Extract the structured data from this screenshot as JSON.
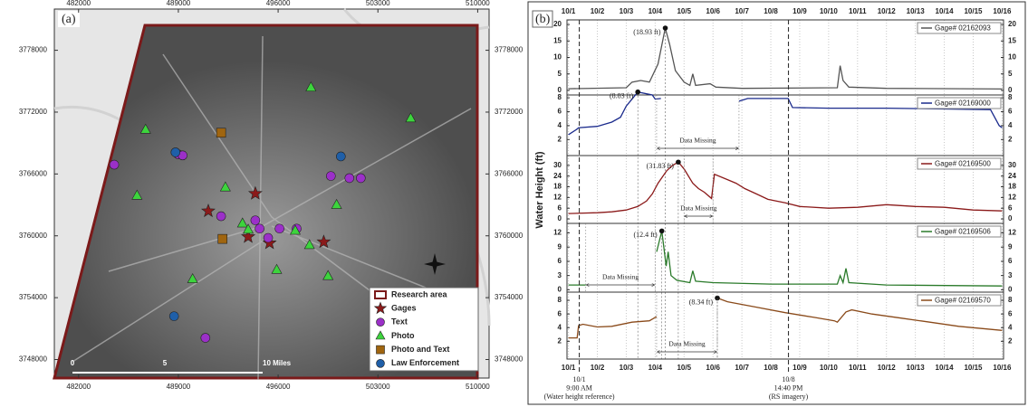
{
  "chart_data": [
    {
      "type": "scatter",
      "panel_label": "(a)",
      "xlim": [
        480300,
        510800
      ],
      "ylim": [
        3746200,
        3782000
      ],
      "xticks": [
        482000,
        489000,
        496000,
        503000,
        510000
      ],
      "yticks": [
        3748000,
        3754000,
        3760000,
        3766000,
        3772000,
        3778000
      ],
      "legend": "lower right",
      "area_label": "Research area",
      "scale_labels": [
        "0",
        "5",
        "10 Miles"
      ],
      "series": [
        {
          "name": "Gages",
          "color": "#8b1a1a",
          "marker": "star",
          "x": [
            494400,
            491100,
            493900,
            495400,
            499200
          ],
          "values": [
            3764100,
            3762400,
            3759900,
            3759300,
            3759400
          ]
        },
        {
          "name": "Text",
          "color": "#9b30c8",
          "marker": "circle",
          "x": [
            484500,
            489000,
            489300,
            492000,
            494400,
            494700,
            495300,
            496100,
            497300,
            499700,
            501000,
            501800,
            490900
          ],
          "values": [
            3766900,
            3767900,
            3767800,
            3761900,
            3761500,
            3760700,
            3759800,
            3760700,
            3760700,
            3765800,
            3765600,
            3765600,
            3750100
          ]
        },
        {
          "name": "Photo",
          "color": "#3dd43d",
          "marker": "triangle",
          "x": [
            498300,
            505300,
            486700,
            486100,
            492300,
            500100,
            493500,
            493900,
            497200,
            498200,
            495900,
            490000,
            499500
          ],
          "values": [
            3774400,
            3771400,
            3770300,
            3763900,
            3764700,
            3763000,
            3761200,
            3760600,
            3760500,
            3759100,
            3756700,
            3755800,
            3756100
          ]
        },
        {
          "name": "Photo and Text",
          "color": "#a0650f",
          "marker": "square",
          "x": [
            492000,
            492100
          ],
          "values": [
            3770000,
            3759700
          ]
        },
        {
          "name": "Law Enforcement",
          "color": "#1f5fa8",
          "marker": "circle",
          "x": [
            488800,
            500400,
            488700
          ],
          "values": [
            3768100,
            3767700,
            3752200
          ]
        }
      ]
    },
    {
      "type": "line",
      "panel_label": "(b)",
      "ylabel": "Water Height (ft)",
      "grid": true,
      "xlim": [
        0.95,
        16.05
      ],
      "xticks": [
        {
          "value": 1,
          "label": "10/1"
        },
        {
          "value": 2,
          "label": "10/2"
        },
        {
          "value": 3,
          "label": "10/3"
        },
        {
          "value": 4,
          "label": "10/4"
        },
        {
          "value": 5,
          "label": "10/5"
        },
        {
          "value": 6,
          "label": "10/6"
        },
        {
          "value": 7,
          "label": "10/7"
        },
        {
          "value": 8,
          "label": "10/8"
        },
        {
          "value": 9,
          "label": "10/9"
        },
        {
          "value": 10,
          "label": "10/10"
        },
        {
          "value": 11,
          "label": "10/11"
        },
        {
          "value": 12,
          "label": "10/12"
        },
        {
          "value": 13,
          "label": "10/13"
        },
        {
          "value": 14,
          "label": "10/14"
        },
        {
          "value": 15,
          "label": "10/15"
        },
        {
          "value": 16,
          "label": "10/16"
        }
      ],
      "reference_lines": [
        {
          "x": 1.375,
          "labels": [
            "10/1",
            "9:00 AM",
            "(Water height reference)"
          ]
        },
        {
          "x": 8.61,
          "labels": [
            "10/8",
            "14:40 PM",
            "(RS imagery)"
          ]
        }
      ],
      "panels": [
        {
          "name": "Gage# 02162093",
          "color": "#555555",
          "ylim": [
            -1.4,
            21.4
          ],
          "yticks": [
            0,
            5,
            10,
            15,
            20
          ],
          "x": [
            1,
            3.0,
            3.2,
            3.5,
            3.8,
            4.1,
            4.35,
            4.5,
            4.7,
            5.0,
            5.2,
            5.3,
            5.4,
            5.9,
            6.1,
            7,
            10.3,
            10.4,
            10.5,
            10.7,
            12,
            16
          ],
          "values": [
            0.5,
            0.8,
            2.5,
            3,
            2.5,
            8,
            18.93,
            14,
            6,
            2.5,
            1.5,
            5,
            1.5,
            2,
            1,
            0.6,
            0.8,
            7.5,
            3,
            1,
            0.6,
            0.4
          ],
          "peak": {
            "x": 4.35,
            "value": 18.93,
            "label": "(18.93 ft)"
          }
        },
        {
          "name": "Gage# 02169000",
          "color": "#1a2a8c",
          "ylim": [
            -0.3,
            8.4
          ],
          "yticks": [
            2,
            4,
            6,
            8
          ],
          "x": [
            1,
            1.3,
            1.35,
            2,
            2.5,
            2.8,
            3.0,
            3.2,
            3.4,
            3.9,
            4.0,
            4.2,
            4.5,
            6.9,
            7.2,
            8.6,
            8.75,
            10,
            12,
            15.6,
            15.9,
            16
          ],
          "values": [
            2.7,
            3.5,
            3.7,
            3.9,
            4.5,
            5.2,
            6.8,
            7.8,
            8.83,
            8.4,
            7.8,
            7.9,
            null,
            7.5,
            7.9,
            7.9,
            6.6,
            6.5,
            6.5,
            6.3,
            4.0,
            3.7
          ],
          "peak": {
            "x": 3.4,
            "value": 8.83,
            "label": "(8.83 ft)"
          },
          "missing": {
            "text": "Data Missing",
            "span": [
              4.05,
              6.9
            ]
          }
        },
        {
          "name": "Gage# 02169500",
          "color": "#8b1a1a",
          "ylim": [
            -2.5,
            35.5
          ],
          "yticks": [
            0,
            6,
            12,
            18,
            24,
            30
          ],
          "x": [
            1,
            2,
            2.5,
            3,
            3.4,
            3.7,
            3.9,
            4.1,
            4.4,
            4.6,
            4.8,
            5.0,
            5.3,
            5.5,
            5.7,
            5.95,
            6.05,
            6.5,
            6.8,
            7.1,
            7.5,
            7.9,
            8.5,
            9,
            10,
            11,
            12,
            13,
            14,
            15,
            16
          ],
          "values": [
            3,
            3.5,
            4,
            5,
            7,
            10,
            14,
            20,
            27,
            30,
            31.83,
            28,
            20,
            17,
            15,
            11.5,
            25,
            22,
            20,
            17,
            14,
            11,
            9,
            7,
            6,
            6.5,
            8,
            7,
            6.5,
            5,
            4.5
          ],
          "peak": {
            "x": 4.8,
            "value": 31.83,
            "label": "(31.83 ft)"
          },
          "missing": {
            "text": "Data Missing",
            "span": [
              5.0,
              6.0
            ]
          }
        },
        {
          "name": "Gage# 02169506",
          "color": "#2a7a2a",
          "ylim": [
            -0.5,
            14
          ],
          "yticks": [
            0,
            3,
            6,
            9,
            12
          ],
          "x": [
            1,
            1.6,
            2.5,
            4.05,
            4.23,
            4.3,
            4.38,
            4.45,
            4.55,
            4.75,
            5.2,
            5.3,
            5.4,
            6,
            8,
            10.3,
            10.4,
            10.5,
            10.6,
            10.7,
            12,
            16
          ],
          "values": [
            1,
            1,
            null,
            8,
            12.4,
            9,
            5,
            8,
            3,
            2,
            1.5,
            4,
            1.8,
            1.5,
            1.2,
            1.2,
            3,
            1.5,
            4.5,
            1.5,
            1,
            0.8
          ],
          "peak": {
            "x": 4.23,
            "value": 12.4,
            "label": "(12.4 ft)"
          },
          "missing": {
            "text": "Data Missing",
            "span": [
              1.6,
              4.0
            ]
          }
        },
        {
          "name": "Gage# 02169570",
          "color": "#8a4a1a",
          "ylim": [
            -0.6,
            9.2
          ],
          "yticks": [
            2,
            4,
            6,
            8
          ],
          "x": [
            1,
            1.3,
            1.35,
            1.5,
            2,
            2.5,
            3.2,
            3.8,
            4.0,
            4.05,
            5,
            6.15,
            6.5,
            7.5,
            8.5,
            9.5,
            10.2,
            10.3,
            10.6,
            10.8,
            11.5,
            12.5,
            13.5,
            14.5,
            16
          ],
          "values": [
            2.5,
            2.5,
            4.3,
            4.5,
            4.1,
            4.2,
            4.8,
            5,
            5.5,
            5.6,
            null,
            8.34,
            7.8,
            7.0,
            6.2,
            5.5,
            5.0,
            4.8,
            6.3,
            6.6,
            6.0,
            5.4,
            4.8,
            4.2,
            3.6
          ],
          "peak": {
            "x": 6.15,
            "value": 8.34,
            "label": "(8.34 ft)"
          },
          "missing": {
            "text": "Data Missing",
            "span": [
              4.05,
              6.15
            ]
          }
        }
      ]
    }
  ]
}
